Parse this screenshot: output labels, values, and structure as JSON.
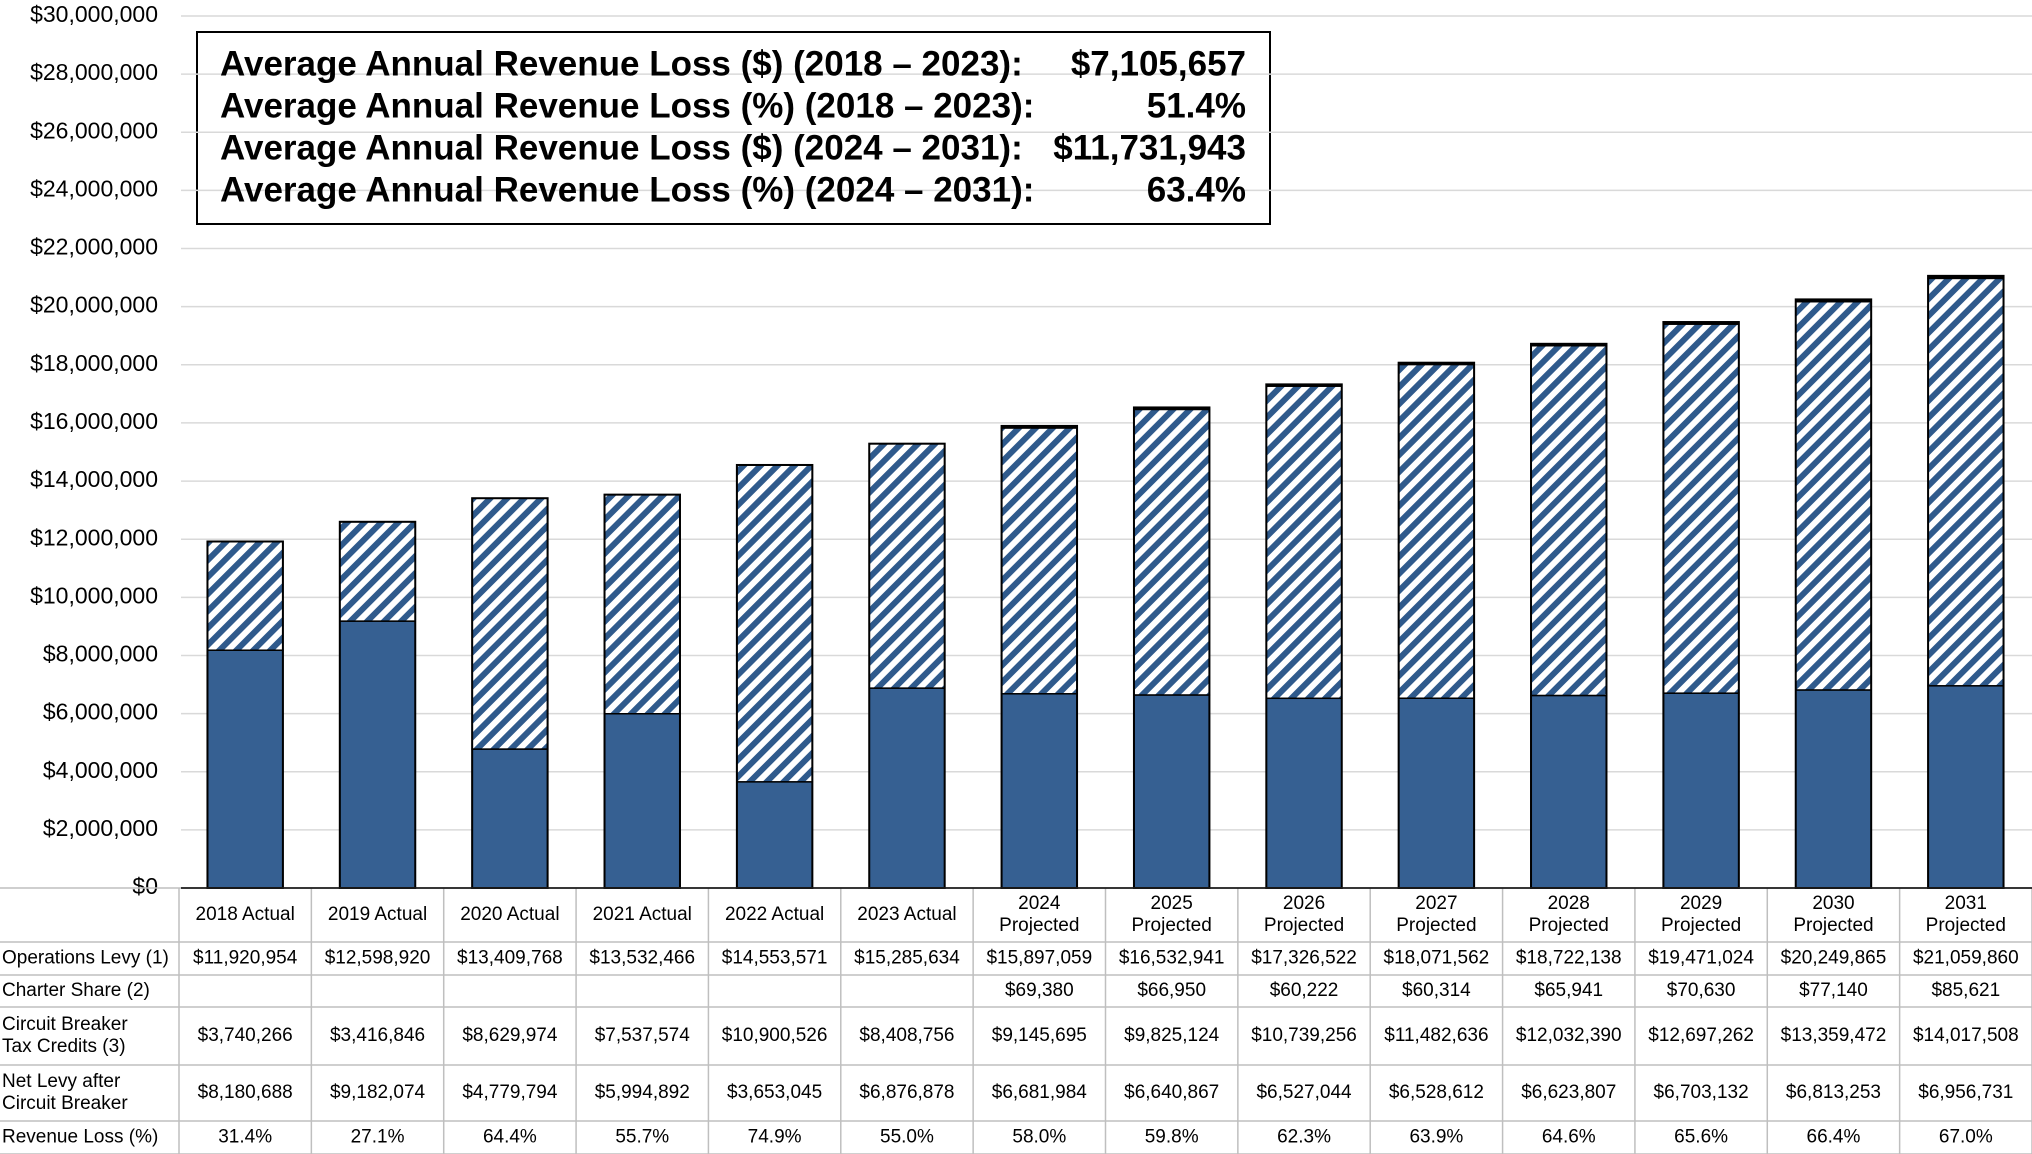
{
  "chart_data": {
    "type": "stacked_bar",
    "categories": [
      "2018 Actual",
      "2019 Actual",
      "2020 Actual",
      "2021 Actual",
      "2022 Actual",
      "2023 Actual",
      "2024 Projected",
      "2025 Projected",
      "2026 Projected",
      "2027 Projected",
      "2028 Projected",
      "2029 Projected",
      "2030 Projected",
      "2031 Projected"
    ],
    "totals": {
      "name": "Operations Levy (1)",
      "values": [
        11920954,
        12598920,
        13409768,
        13532466,
        14553571,
        15285634,
        15897059,
        16532941,
        17326522,
        18071562,
        18722138,
        19471024,
        20249865,
        21059860
      ],
      "value_labels": [
        "$11,920,954",
        "$12,598,920",
        "$13,409,768",
        "$13,532,466",
        "$14,553,571",
        "$15,285,634",
        "$15,897,059",
        "$16,532,941",
        "$17,326,522",
        "$18,071,562",
        "$18,722,138",
        "$19,471,024",
        "$20,249,865",
        "$21,059,860"
      ]
    },
    "series": [
      {
        "name": "Charter Share (2)",
        "color": "#000000",
        "pattern": "solid",
        "values": [
          null,
          null,
          null,
          null,
          null,
          null,
          69380,
          66950,
          60222,
          60314,
          65941,
          70630,
          77140,
          85621
        ],
        "value_labels": [
          null,
          null,
          null,
          null,
          null,
          null,
          "$69,380",
          "$66,950",
          "$60,222",
          "$60,314",
          "$65,941",
          "$70,630",
          "$77,140",
          "$85,621"
        ]
      },
      {
        "name": "Circuit Breaker Tax Credits (3)",
        "color": "#2f5a8c",
        "pattern": "hatch",
        "values": [
          3740266,
          3416846,
          8629974,
          7537574,
          10900526,
          8408756,
          9145695,
          9825124,
          10739256,
          11482636,
          12032390,
          12697262,
          13359472,
          14017508
        ],
        "value_labels": [
          "$3,740,266",
          "$3,416,846",
          "$8,629,974",
          "$7,537,574",
          "$10,900,526",
          "$8,408,756",
          "$9,145,695",
          "$9,825,124",
          "$10,739,256",
          "$11,482,636",
          "$12,032,390",
          "$12,697,262",
          "$13,359,472",
          "$14,017,508"
        ]
      },
      {
        "name": "Net Levy after Circuit Breaker",
        "color": "#366092",
        "pattern": "solid",
        "values": [
          8180688,
          9182074,
          4779794,
          5994892,
          3653045,
          6876878,
          6681984,
          6640867,
          6527044,
          6528612,
          6623807,
          6703132,
          6813253,
          6956731
        ],
        "value_labels": [
          "$8,180,688",
          "$9,182,074",
          "$4,779,794",
          "$5,994,892",
          "$3,653,045",
          "$6,876,878",
          "$6,681,984",
          "$6,640,867",
          "$6,527,044",
          "$6,528,612",
          "$6,623,807",
          "$6,703,132",
          "$6,813,253",
          "$6,956,731"
        ]
      }
    ],
    "revenue_loss": {
      "name": "Revenue Loss (%)",
      "labels": [
        "31.4%",
        "27.1%",
        "64.4%",
        "55.7%",
        "74.9%",
        "55.0%",
        "58.0%",
        "59.8%",
        "62.3%",
        "63.9%",
        "64.6%",
        "65.6%",
        "66.4%",
        "67.0%"
      ]
    },
    "ylim": [
      0,
      30000000
    ],
    "yticks": [
      {
        "value": 0,
        "label": "$0"
      },
      {
        "value": 2000000,
        "label": "$2,000,000"
      },
      {
        "value": 4000000,
        "label": "$4,000,000"
      },
      {
        "value": 6000000,
        "label": "$6,000,000"
      },
      {
        "value": 8000000,
        "label": "$8,000,000"
      },
      {
        "value": 10000000,
        "label": "$10,000,000"
      },
      {
        "value": 12000000,
        "label": "$12,000,000"
      },
      {
        "value": 14000000,
        "label": "$14,000,000"
      },
      {
        "value": 16000000,
        "label": "$16,000,000"
      },
      {
        "value": 18000000,
        "label": "$18,000,000"
      },
      {
        "value": 20000000,
        "label": "$20,000,000"
      },
      {
        "value": 22000000,
        "label": "$22,000,000"
      },
      {
        "value": 24000000,
        "label": "$24,000,000"
      },
      {
        "value": 26000000,
        "label": "$26,000,000"
      },
      {
        "value": 28000000,
        "label": "$28,000,000"
      },
      {
        "value": 30000000,
        "label": "$30,000,000"
      }
    ],
    "grid": true,
    "annotations": [
      {
        "label": "Average Annual Revenue Loss ($) (2018 – 2023):",
        "value": "$7,105,657"
      },
      {
        "label": "Average Annual Revenue Loss (%) (2018 – 2023):",
        "value": "51.4%"
      },
      {
        "label": "Average Annual Revenue Loss ($) (2024 – 2031):",
        "value": "$11,731,943"
      },
      {
        "label": "Average Annual Revenue Loss (%) (2024 – 2031):",
        "value": "63.4%"
      }
    ]
  }
}
